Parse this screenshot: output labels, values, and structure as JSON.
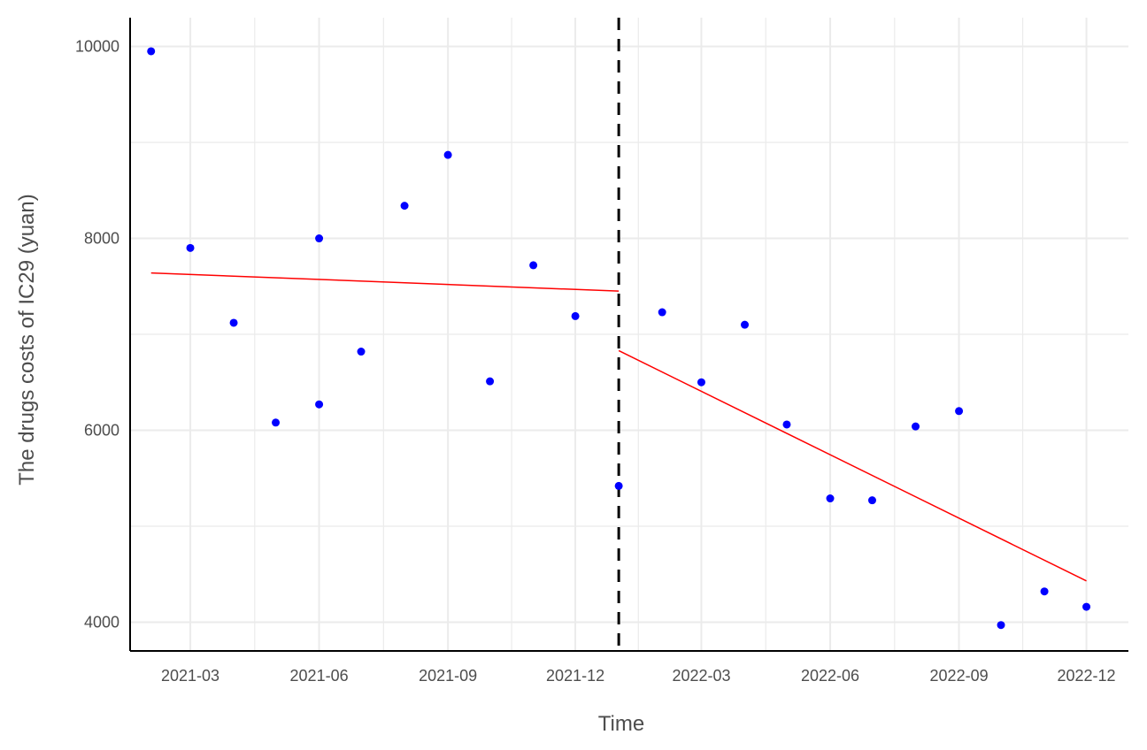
{
  "chart_data": {
    "type": "scatter",
    "title": "",
    "xlabel": "Time",
    "ylabel": "The drugs costs of IC29 (yuan)",
    "grid": true,
    "legend": "none",
    "colors": {
      "points": "#0000ff",
      "trend": "#ff0000",
      "intervention": "#000000",
      "grid": "#ebebeb",
      "axis": "#000000"
    },
    "xlim": [
      "2021-01-17",
      "2022-12-31"
    ],
    "ylim": [
      3700,
      10300
    ],
    "x_ticks": [
      "2021-03",
      "2021-06",
      "2021-09",
      "2021-12",
      "2022-03",
      "2022-06",
      "2022-09",
      "2022-12"
    ],
    "y_ticks": [
      4000,
      6000,
      8000,
      10000
    ],
    "intervention_date": "2022-01-01",
    "series": [
      {
        "values": [
          {
            "x": "2021-02",
            "y": 9950
          },
          {
            "x": "2021-03",
            "y": 7900
          },
          {
            "x": "2021-04",
            "y": 7120
          },
          {
            "x": "2021-05",
            "y": 6080
          },
          {
            "x": "2021-06",
            "y": 8000
          },
          {
            "x": "2021-06",
            "y": 6270
          },
          {
            "x": "2021-07",
            "y": 6820
          },
          {
            "x": "2021-08",
            "y": 8340
          },
          {
            "x": "2021-09",
            "y": 8870
          },
          {
            "x": "2021-10",
            "y": 6510
          },
          {
            "x": "2021-11",
            "y": 7720
          },
          {
            "x": "2021-12",
            "y": 7190
          },
          {
            "x": "2022-01",
            "y": 5420
          },
          {
            "x": "2022-02",
            "y": 7230
          },
          {
            "x": "2022-03",
            "y": 6500
          },
          {
            "x": "2022-04",
            "y": 7100
          },
          {
            "x": "2022-05",
            "y": 6060
          },
          {
            "x": "2022-06",
            "y": 5290
          },
          {
            "x": "2022-07",
            "y": 5270
          },
          {
            "x": "2022-08",
            "y": 6040
          },
          {
            "x": "2022-09",
            "y": 6200
          },
          {
            "x": "2022-10",
            "y": 3970
          },
          {
            "x": "2022-11",
            "y": 4320
          },
          {
            "x": "2022-12",
            "y": 4160
          }
        ]
      }
    ],
    "trend_lines": [
      {
        "x": [
          "2021-02",
          "2022-01"
        ],
        "y": [
          7640,
          7450
        ]
      },
      {
        "x": [
          "2022-01",
          "2022-12"
        ],
        "y": [
          6830,
          4430
        ]
      }
    ]
  }
}
